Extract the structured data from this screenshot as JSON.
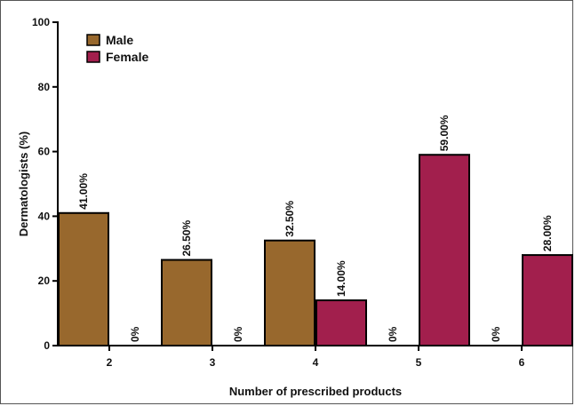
{
  "chart_data": {
    "type": "bar",
    "xlabel": "Number of prescribed products",
    "ylabel": "Dermatologists (%)",
    "categories": [
      "2",
      "3",
      "4",
      "5",
      "6"
    ],
    "ylim": [
      0,
      100
    ],
    "yticks": [
      0,
      20,
      40,
      60,
      80,
      100
    ],
    "legend_position": "top-left",
    "series": [
      {
        "name": "Male",
        "color": "#98682d",
        "values": [
          41.0,
          26.5,
          32.5,
          0,
          0
        ],
        "labels": [
          "41.00%",
          "26.50%",
          "32.50%",
          "0%",
          "0%"
        ]
      },
      {
        "name": "Female",
        "color": "#a21f4d",
        "values": [
          0,
          0,
          14.0,
          59.0,
          28.0
        ],
        "labels": [
          "0%",
          "0%",
          "14.00%",
          "59.00%",
          "28.00%"
        ]
      }
    ]
  }
}
